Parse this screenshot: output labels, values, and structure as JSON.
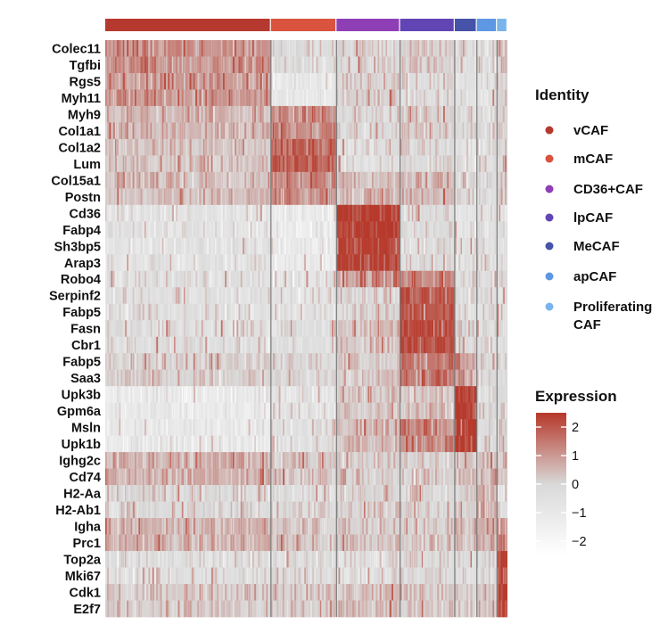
{
  "chart_data": {
    "type": "heatmap",
    "title": "",
    "genes": [
      "Colec11",
      "Tgfbi",
      "Rgs5",
      "Myh11",
      "Myh9",
      "Col1a1",
      "Col1a2",
      "Lum",
      "Col15a1",
      "Postn",
      "Cd36",
      "Fabp4",
      "Sh3bp5",
      "Arap3",
      "Robo4",
      "Serpinf2",
      "Fabp5",
      "Fasn",
      "Cbr1",
      "Fabp5",
      "Saa3",
      "Upk3b",
      "Gpm6a",
      "Msln",
      "Upk1b",
      "Ighg2c",
      "Cd74",
      "H2-Aa",
      "H2-Ab1",
      "Igha",
      "Prc1",
      "Top2a",
      "Mki67",
      "Cdk1",
      "E2f7"
    ],
    "clusters": [
      {
        "name": "vCAF",
        "color": "#b5392f",
        "fraction": 0.412
      },
      {
        "name": "mCAF",
        "color": "#d9533e",
        "fraction": 0.163
      },
      {
        "name": "CD36+CAF",
        "color": "#8e3fb5",
        "fraction": 0.158
      },
      {
        "name": "lpCAF",
        "color": "#6245b4",
        "fraction": 0.136
      },
      {
        "name": "MeCAF",
        "color": "#4653a8",
        "fraction": 0.055
      },
      {
        "name": "apCAF",
        "color": "#5e97e3",
        "fraction": 0.05
      },
      {
        "name": "Proliferating CAF",
        "color": "#79b5ec",
        "fraction": 0.026
      }
    ],
    "mean_expression": [
      [
        1.1,
        -0.2,
        0.0,
        0.2,
        -0.3,
        -0.4,
        0.3
      ],
      [
        1.1,
        -0.3,
        0.0,
        0.2,
        -0.3,
        -0.4,
        0.3
      ],
      [
        1.0,
        -1.0,
        0.2,
        -0.2,
        -0.5,
        -0.6,
        0.2
      ],
      [
        1.0,
        -1.0,
        0.2,
        -0.2,
        -0.5,
        -0.6,
        0.2
      ],
      [
        0.5,
        1.2,
        0.0,
        0.2,
        -0.2,
        -0.3,
        0.2
      ],
      [
        0.5,
        1.2,
        0.0,
        0.2,
        -0.2,
        -0.3,
        0.2
      ],
      [
        0.3,
        1.7,
        -0.3,
        -0.1,
        -0.5,
        -0.3,
        0.1
      ],
      [
        0.3,
        1.7,
        -0.3,
        -0.1,
        -0.5,
        -0.3,
        0.1
      ],
      [
        0.4,
        1.2,
        0.4,
        0.5,
        -0.2,
        -0.2,
        0.2
      ],
      [
        0.4,
        1.2,
        0.4,
        0.5,
        -0.2,
        -0.2,
        0.2
      ],
      [
        -0.6,
        -1.2,
        2.4,
        -0.2,
        -0.5,
        -0.5,
        -0.3
      ],
      [
        -0.6,
        -1.2,
        2.4,
        -0.2,
        -0.5,
        -0.5,
        -0.3
      ],
      [
        -0.6,
        -1.1,
        2.3,
        -0.1,
        -0.5,
        -0.5,
        -0.3
      ],
      [
        -0.6,
        -1.1,
        2.3,
        -0.1,
        -0.5,
        -0.5,
        -0.3
      ],
      [
        -0.4,
        -0.5,
        1.0,
        1.2,
        -0.4,
        -0.4,
        -0.2
      ],
      [
        -0.4,
        -0.5,
        0.0,
        2.0,
        -0.3,
        -0.4,
        -0.2
      ],
      [
        -0.4,
        -0.5,
        0.0,
        2.0,
        -0.3,
        -0.4,
        -0.2
      ],
      [
        -0.3,
        -0.3,
        0.3,
        2.1,
        0.0,
        -0.3,
        -0.1
      ],
      [
        -0.3,
        -0.3,
        0.3,
        2.1,
        0.0,
        -0.3,
        -0.1
      ],
      [
        0.1,
        0.0,
        0.2,
        1.5,
        0.9,
        0.0,
        0.0
      ],
      [
        0.1,
        0.0,
        0.2,
        1.5,
        0.9,
        0.0,
        0.0
      ],
      [
        -1.1,
        -0.6,
        0.3,
        0.3,
        2.4,
        -0.2,
        0.0
      ],
      [
        -1.1,
        -0.6,
        0.3,
        0.3,
        2.4,
        -0.2,
        0.0
      ],
      [
        -1.0,
        -0.4,
        0.5,
        1.2,
        2.4,
        -0.1,
        0.0
      ],
      [
        -1.0,
        -0.4,
        0.5,
        1.2,
        2.4,
        -0.1,
        0.0
      ],
      [
        0.6,
        0.2,
        0.1,
        0.1,
        0.3,
        0.4,
        0.3
      ],
      [
        0.6,
        0.2,
        0.1,
        0.1,
        0.3,
        0.4,
        0.3
      ],
      [
        0.0,
        -0.1,
        0.1,
        0.0,
        0.1,
        0.6,
        -0.4
      ],
      [
        0.0,
        -0.1,
        0.1,
        0.0,
        0.1,
        0.6,
        -0.4
      ],
      [
        0.6,
        0.2,
        0.2,
        0.2,
        0.3,
        0.6,
        1.0
      ],
      [
        0.6,
        0.2,
        0.2,
        0.2,
        0.3,
        0.6,
        1.0
      ],
      [
        -0.3,
        -0.2,
        -0.3,
        -0.2,
        -0.2,
        -0.1,
        2.2
      ],
      [
        -0.3,
        -0.2,
        -0.3,
        -0.2,
        -0.2,
        -0.1,
        2.2
      ],
      [
        0.2,
        0.2,
        0.3,
        0.2,
        0.2,
        0.3,
        2.3
      ],
      [
        0.2,
        0.2,
        0.3,
        0.2,
        0.2,
        0.3,
        2.3
      ]
    ],
    "legend": {
      "identity_title": "Identity",
      "expression_title": "Expression",
      "colorbar_ticks": [
        "2",
        "1",
        "0",
        "−1",
        "−2"
      ],
      "colorbar_range": [
        -2.5,
        2.5
      ],
      "placement": "right"
    },
    "colors": {
      "high": "#b6382a",
      "mid": "#d9d9d9",
      "low": "#ffffff"
    }
  }
}
